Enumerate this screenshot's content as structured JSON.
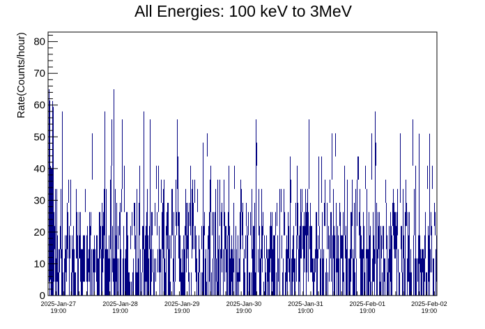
{
  "chart_data": {
    "type": "histogram",
    "title": "All Energies:  100 keV to 3MeV",
    "xlabel": "",
    "ylabel": "Rate(Counts/hour)",
    "ylim": [
      0,
      83
    ],
    "yticks": [
      0,
      10,
      20,
      30,
      40,
      50,
      60,
      70,
      80
    ],
    "xlim": [
      "2025-Jan-27 15:00",
      "2025-Feb-02 22:00"
    ],
    "xticks": [
      {
        "date": "2025-Jan-27",
        "time": "19:00"
      },
      {
        "date": "2025-Jan-28",
        "time": "19:00"
      },
      {
        "date": "2025-Jan-29",
        "time": "19:00"
      },
      {
        "date": "2025-Jan-30",
        "time": "19:00"
      },
      {
        "date": "2025-Jan-31",
        "time": "19:00"
      },
      {
        "date": "2025-Feb-01",
        "time": "19:00"
      },
      {
        "date": "2025-Feb-02",
        "time": "19:00"
      }
    ],
    "series": [
      {
        "color": "#000080",
        "quantum": 7.3,
        "max_levels": [
          0,
          1,
          2,
          3,
          4,
          5,
          6,
          7
        ],
        "level_weights": [
          0.04,
          0.19,
          0.27,
          0.24,
          0.14,
          0.06,
          0.035,
          0.025
        ],
        "peaks": [
          {
            "x": "2025-Jan-27 15:20",
            "y": 65
          },
          {
            "x": "2025-Jan-28 16:30",
            "y": 65
          },
          {
            "x": "2025-Jan-28 13:00",
            "y": 58
          },
          {
            "x": "2025-Jan-27 20:30",
            "y": 58
          },
          {
            "x": "2025-Jan-29 04:00",
            "y": 58
          },
          {
            "x": "2025-Feb-01 22:00",
            "y": 58
          },
          {
            "x": "2025-Feb-02 15:00",
            "y": 51
          },
          {
            "x": "2025-Feb-02 19:00",
            "y": 51
          }
        ]
      }
    ]
  }
}
